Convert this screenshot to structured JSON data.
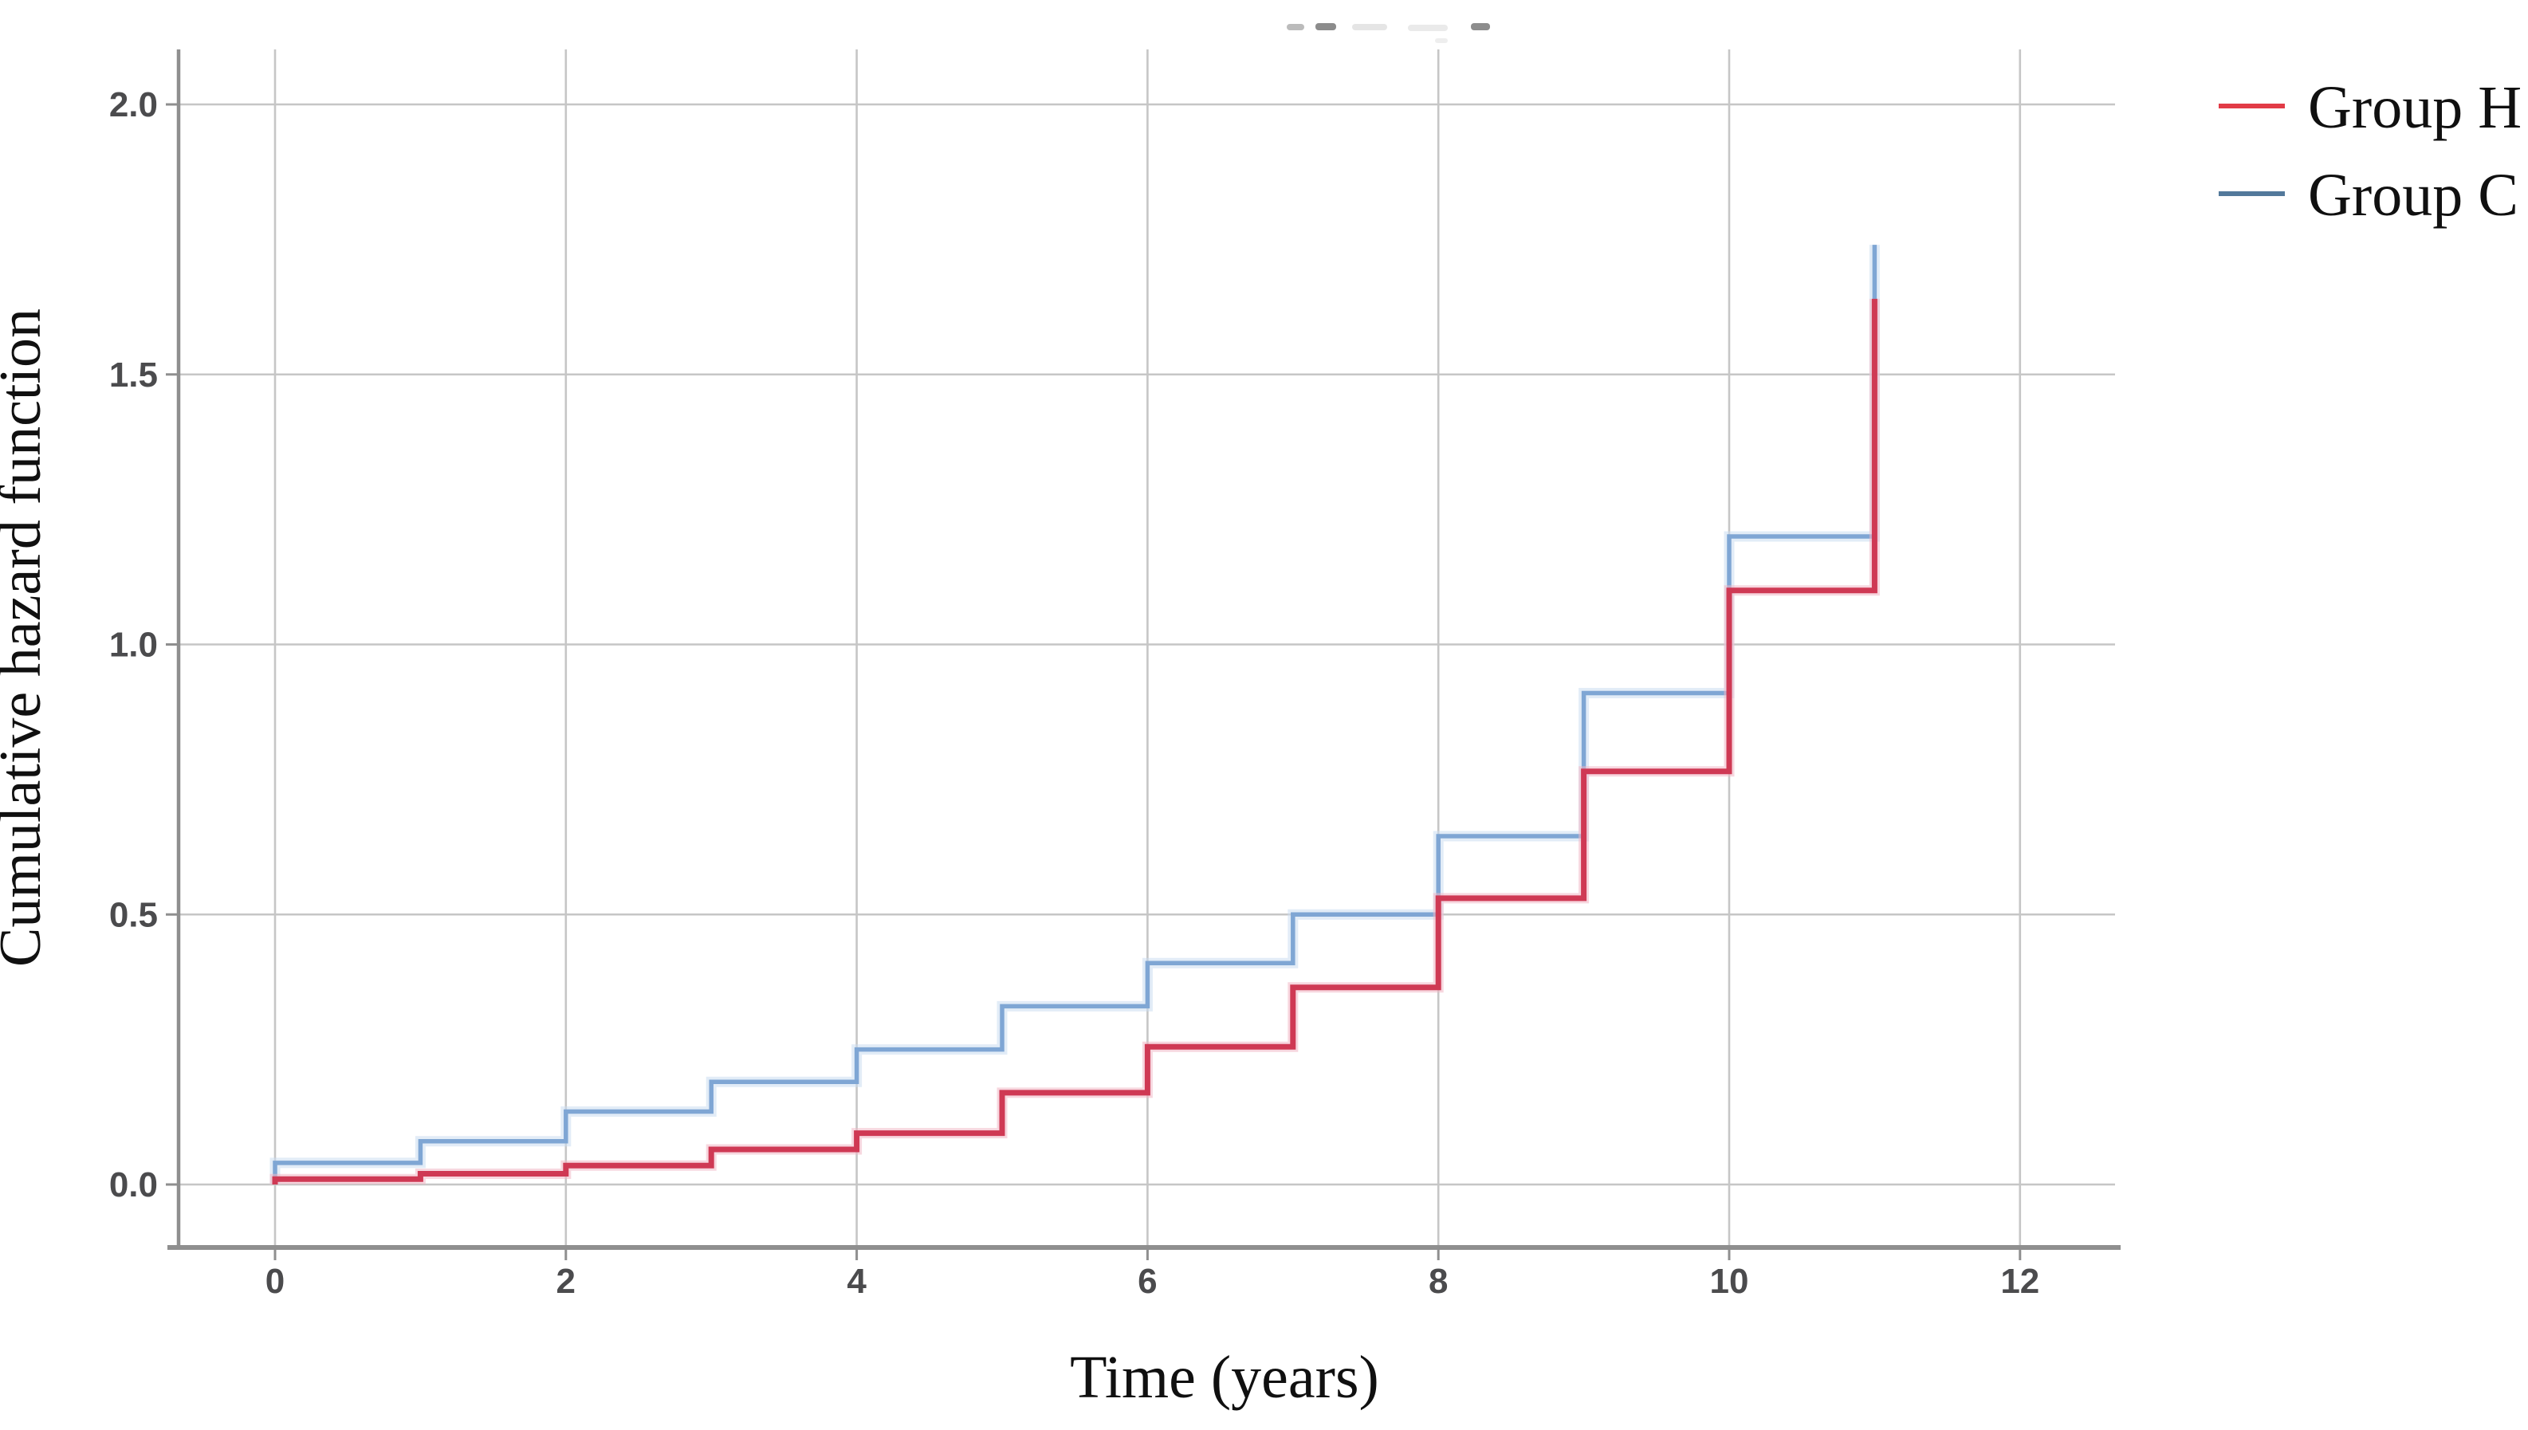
{
  "chart_data": {
    "type": "line",
    "subtype": "step-cumulative-hazard",
    "title": "",
    "xlabel": "Time (years)",
    "ylabel": "Cumulative hazard function",
    "x_ticks": [
      "0",
      "2",
      "4",
      "6",
      "8",
      "10",
      "12"
    ],
    "x_tick_values": [
      0,
      2,
      4,
      6,
      8,
      10,
      12
    ],
    "y_ticks": [
      "0.0",
      "0.5",
      "1.0",
      "1.5",
      "2.0"
    ],
    "y_tick_values": [
      0.0,
      0.5,
      1.0,
      1.5,
      2.0
    ],
    "xlim": [
      -0.66,
      12.65
    ],
    "ylim": [
      -0.12,
      2.1
    ],
    "grid": true,
    "legend_position": "outside-top-right",
    "event_times_years": [
      0,
      1,
      2,
      3,
      4,
      5,
      6,
      7,
      8,
      9,
      10,
      11
    ],
    "series": [
      {
        "name": "Group H",
        "color": "#cf3954",
        "halo_color": "#f0b6c4",
        "levels_per_year_interval": [
          0.01,
          0.02,
          0.035,
          0.065,
          0.095,
          0.17,
          0.255,
          0.365,
          0.53,
          0.765,
          1.1
        ],
        "final_value_at_year_11": 1.64
      },
      {
        "name": "Group C",
        "color": "#7fa6d4",
        "halo_color": "#cadcf0",
        "levels_per_year_interval": [
          0.04,
          0.08,
          0.135,
          0.19,
          0.25,
          0.33,
          0.41,
          0.5,
          0.645,
          0.91,
          1.2
        ],
        "final_value_at_year_11": 1.74
      }
    ]
  },
  "legend": {
    "items": [
      {
        "label": "Group H",
        "swatch_color": "#e23b47"
      },
      {
        "label": "Group C",
        "swatch_color": "#53799b"
      }
    ]
  },
  "style_colors": {
    "gridline": "#c6c6c6",
    "axis_line": "#8f8f8f",
    "tick_label": "#4b4b4d"
  }
}
